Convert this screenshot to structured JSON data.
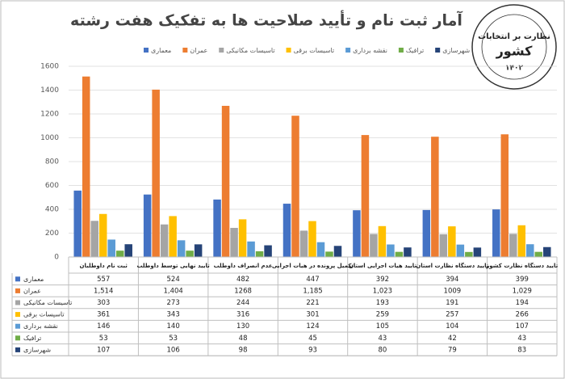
{
  "logo": {
    "lines": [
      "نظارت بر انتخابات",
      "کشور",
      "۱۴۰۲"
    ]
  },
  "chart_data": {
    "type": "bar",
    "title": "آمار ثبت نام و تأیید صلاحیت ها به تفکیک هفت رشته",
    "categories": [
      "ثبت نام داوطلبان",
      "تایید نهایی توسط داوطلب",
      "عدم انصراف داوطلب",
      "تکمیل پرونده در هیات اجرایی",
      "تایید هیات اجرایی استان",
      "تایید دستگاه نظارت استان",
      "تایید دستگاه نظارت کشور"
    ],
    "series": [
      {
        "name": "معماری",
        "color": "#4472c4",
        "values": [
          557,
          524,
          482,
          447,
          392,
          394,
          399
        ]
      },
      {
        "name": "عمران",
        "color": "#ed7d31",
        "values": [
          1514,
          1404,
          1268,
          1185,
          1023,
          1009,
          1029
        ],
        "value_labels": [
          "1,514",
          "1,404",
          "1268",
          "1,185",
          "1,023",
          "1009",
          "1,029"
        ]
      },
      {
        "name": "تاسیسات مکانیکی",
        "color": "#a5a5a5",
        "values": [
          303,
          273,
          244,
          221,
          193,
          191,
          194
        ]
      },
      {
        "name": "تاسیسات برقی",
        "color": "#ffc000",
        "values": [
          361,
          343,
          316,
          301,
          259,
          257,
          266
        ]
      },
      {
        "name": "نقشه برداری",
        "color": "#5b9bd5",
        "values": [
          146,
          140,
          130,
          124,
          105,
          104,
          107
        ]
      },
      {
        "name": "ترافیک",
        "color": "#70ad47",
        "values": [
          53,
          53,
          48,
          45,
          43,
          42,
          43
        ]
      },
      {
        "name": "شهرسازی",
        "color": "#264478",
        "values": [
          107,
          106,
          98,
          93,
          80,
          79,
          83
        ]
      }
    ],
    "ylim": [
      0,
      1600
    ],
    "yticks": [
      0,
      200,
      400,
      600,
      800,
      1000,
      1200,
      1400,
      1600
    ],
    "grid": true,
    "legend": "top"
  }
}
